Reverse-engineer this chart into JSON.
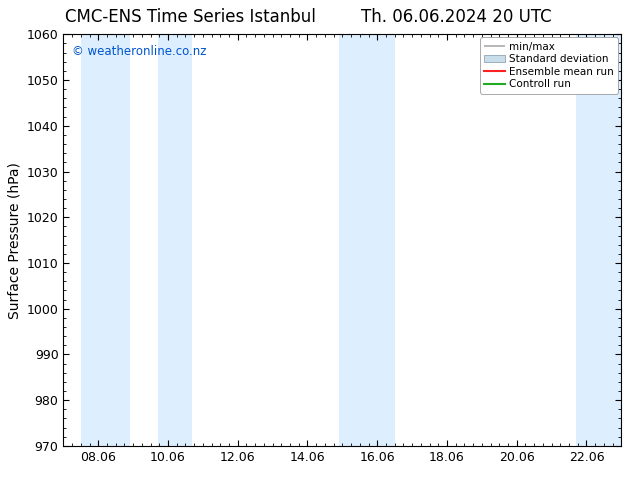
{
  "title_left": "CMC-ENS Time Series Istanbul",
  "title_right": "Th. 06.06.2024 20 UTC",
  "ylabel": "Surface Pressure (hPa)",
  "ylim": [
    970,
    1060
  ],
  "yticks": [
    970,
    980,
    990,
    1000,
    1010,
    1020,
    1030,
    1040,
    1050,
    1060
  ],
  "xlabel_ticks": [
    "08.06",
    "10.06",
    "12.06",
    "14.06",
    "16.06",
    "18.06",
    "20.06",
    "22.06"
  ],
  "shade_color": "#ddeeff",
  "shade_alpha": 1.0,
  "background_color": "#ffffff",
  "watermark": "© weatheronline.co.nz",
  "watermark_color": "#0055cc",
  "legend_labels": [
    "min/max",
    "Standard deviation",
    "Ensemble mean run",
    "Controll run"
  ],
  "title_fontsize": 12,
  "tick_fontsize": 9,
  "ylabel_fontsize": 10
}
